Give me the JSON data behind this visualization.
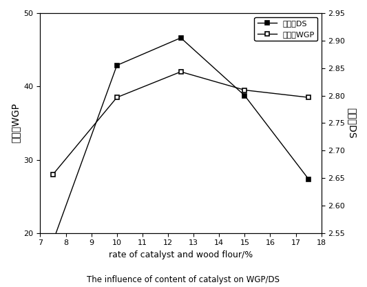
{
  "x": [
    7.5,
    10,
    12.5,
    15,
    17.5
  ],
  "wgp": [
    28.0,
    38.5,
    42.0,
    39.5,
    38.5
  ],
  "ds": [
    2.535,
    2.855,
    2.905,
    2.8,
    2.648
  ],
  "xlim": [
    7,
    18
  ],
  "xticks": [
    7,
    8,
    9,
    10,
    11,
    12,
    13,
    14,
    15,
    16,
    17,
    18
  ],
  "ylim_left": [
    20,
    50
  ],
  "yticks_left": [
    20,
    30,
    40,
    50
  ],
  "ylim_right": [
    2.55,
    2.95
  ],
  "yticks_right": [
    2.55,
    2.6,
    2.65,
    2.7,
    2.75,
    2.8,
    2.85,
    2.9,
    2.95
  ],
  "xlabel": "rate of catalyst and wood flour/%",
  "ylabel_left": "增重率WGP",
  "ylabel_right": "取代度DS",
  "title": "The influence of content of catalyst on WGP/DS",
  "legend_ds": "─■─取代度DS",
  "legend_wgp": "─□─增重率WGP",
  "line_color": "#555555",
  "bg_color": "#ffffff"
}
